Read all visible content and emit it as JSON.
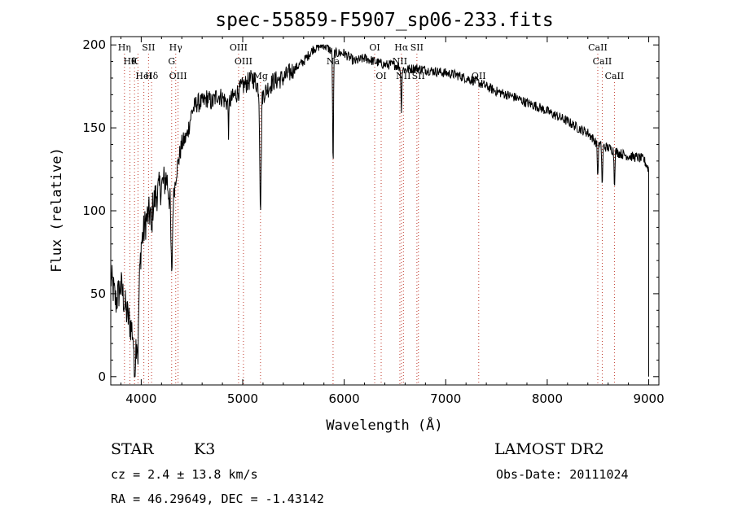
{
  "chart_data": {
    "type": "line",
    "title": "spec-55859-F5907_sp06-233.fits",
    "xlabel": "Wavelength (Å)",
    "ylabel": "Flux (relative)",
    "xlim": [
      3700,
      9100
    ],
    "ylim": [
      -5,
      205
    ],
    "xticks": [
      4000,
      5000,
      6000,
      7000,
      8000,
      9000
    ],
    "yticks": [
      0,
      50,
      100,
      150,
      200
    ],
    "grid": false,
    "line_color": "#000000",
    "marker_color": "#c0392b",
    "series": [
      {
        "x": [
          3700,
          3750,
          3800,
          3850,
          3900,
          3950,
          4000,
          4050,
          4100,
          4150,
          4200,
          4250,
          4300,
          4350,
          4400,
          4450,
          4500,
          4550,
          4600,
          4650,
          4700,
          4750,
          4800,
          4850,
          4900,
          5000,
          5100,
          5200,
          5300,
          5400,
          5500,
          5600,
          5700,
          5800,
          5900,
          6000,
          6100,
          6200,
          6300,
          6400,
          6500,
          6600,
          6700,
          6800,
          6900,
          7000,
          7100,
          7200,
          7300,
          7400,
          7500,
          7600,
          7700,
          7800,
          7900,
          8000,
          8100,
          8200,
          8300,
          8400,
          8500,
          8600,
          8700,
          8800,
          8900,
          8950,
          9000
        ],
        "y": [
          60,
          45,
          55,
          40,
          30,
          20,
          80,
          95,
          100,
          110,
          115,
          120,
          100,
          125,
          140,
          145,
          160,
          165,
          165,
          168,
          165,
          170,
          168,
          165,
          168,
          175,
          180,
          170,
          178,
          180,
          185,
          190,
          198,
          200,
          195,
          195,
          190,
          192,
          190,
          188,
          188,
          185,
          186,
          185,
          184,
          183,
          182,
          180,
          178,
          175,
          172,
          170,
          168,
          165,
          163,
          160,
          157,
          154,
          150,
          147,
          140,
          138,
          135,
          133,
          132,
          131,
          125
        ]
      }
    ],
    "line_markers": [
      {
        "x": 3835,
        "label": "Hη",
        "row": 0
      },
      {
        "x": 3889,
        "label": "Hθ",
        "row": 1
      },
      {
        "x": 3934,
        "label": "K",
        "row": 1
      },
      {
        "x": 3968,
        "label": "",
        "row": 0
      },
      {
        "x": 4026,
        "label": "HeI",
        "row": 2
      },
      {
        "x": 4072,
        "label": "SII",
        "row": 0
      },
      {
        "x": 4102,
        "label": "Hδ",
        "row": 2
      },
      {
        "x": 4300,
        "label": "G",
        "row": 1
      },
      {
        "x": 4340,
        "label": "Hγ",
        "row": 0
      },
      {
        "x": 4363,
        "label": "OIII",
        "row": 2
      },
      {
        "x": 4959,
        "label": "OIII",
        "row": 0
      },
      {
        "x": 5007,
        "label": "OIII",
        "row": 1
      },
      {
        "x": 5175,
        "label": "Mg",
        "row": 2
      },
      {
        "x": 5890,
        "label": "Na",
        "row": 1
      },
      {
        "x": 6300,
        "label": "OI",
        "row": 0
      },
      {
        "x": 6364,
        "label": "OI",
        "row": 2
      },
      {
        "x": 6548,
        "label": "NII",
        "row": 1
      },
      {
        "x": 6563,
        "label": "Hα",
        "row": 0
      },
      {
        "x": 6583,
        "label": "NII",
        "row": 2
      },
      {
        "x": 6716,
        "label": "SII",
        "row": 0
      },
      {
        "x": 6731,
        "label": "SII",
        "row": 2
      },
      {
        "x": 7325,
        "label": "OII",
        "row": 2
      },
      {
        "x": 8498,
        "label": "CaII",
        "row": 0
      },
      {
        "x": 8542,
        "label": "CaII",
        "row": 1
      },
      {
        "x": 8662,
        "label": "CaII",
        "row": 2
      }
    ]
  },
  "info": {
    "object_class": "STAR",
    "subclass": "K3",
    "survey": "LAMOST DR2",
    "velocity": "cz = 2.4 ± 13.8 km/s",
    "obs_date": "Obs-Date: 20111024",
    "coords": "RA =  46.29649, DEC =  -1.43142"
  }
}
